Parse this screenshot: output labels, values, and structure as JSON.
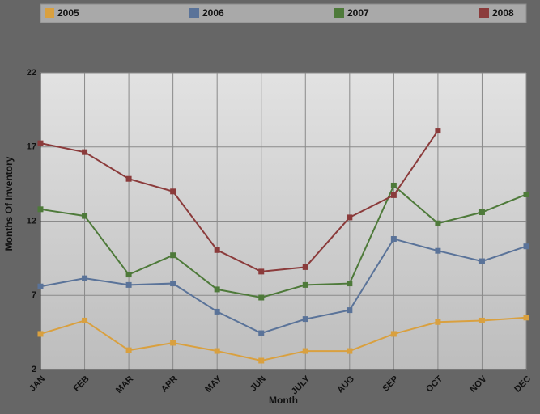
{
  "chart_data": {
    "type": "line",
    "x_label": "Month",
    "y_label": "Months Of Inventory",
    "categories": [
      "JAN",
      "FEB",
      "MAR",
      "APR",
      "MAY",
      "JUN",
      "JULY",
      "AUG",
      "SEP",
      "OCT",
      "NOV",
      "DEC"
    ],
    "series": [
      {
        "name": "2005",
        "color": "#d9a03f",
        "values": [
          4.4,
          5.3,
          3.3,
          3.8,
          3.25,
          2.6,
          3.25,
          3.25,
          4.4,
          5.2,
          5.3,
          5.5
        ]
      },
      {
        "name": "2006",
        "color": "#5a7399",
        "values": [
          7.6,
          8.15,
          7.7,
          7.8,
          5.9,
          4.45,
          5.4,
          6.0,
          10.8,
          10.0,
          9.3,
          10.3
        ]
      },
      {
        "name": "2007",
        "color": "#4e7a3a",
        "values": [
          12.8,
          12.35,
          8.4,
          9.7,
          7.4,
          6.85,
          7.7,
          7.8,
          14.4,
          11.85,
          12.6,
          13.8
        ]
      },
      {
        "name": "2008",
        "color": "#8b3b3b",
        "values": [
          17.25,
          16.65,
          14.85,
          14.0,
          10.05,
          8.6,
          8.9,
          12.25,
          13.75,
          18.1,
          null,
          null
        ]
      }
    ],
    "ylim": [
      2,
      22
    ],
    "yticks": [
      2,
      7,
      12,
      17,
      22
    ],
    "grid": true,
    "legend": "top"
  }
}
